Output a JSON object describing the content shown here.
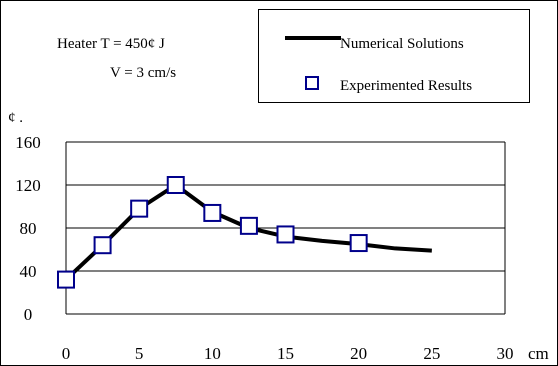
{
  "annotations": {
    "heater": "Heater T = 450¢ J",
    "velocity": "V = 3 cm/s",
    "y_unit": "¢ .",
    "x_unit": "cm"
  },
  "legend": {
    "line_label": "Numerical Solutions",
    "marker_label": "Experimented Results"
  },
  "colors": {
    "line": "#000000",
    "marker_edge": "#00008b",
    "marker_fill": "#ffffff",
    "grid": "#000000"
  },
  "chart_data": {
    "type": "line",
    "title": "",
    "xlabel": "cm",
    "ylabel": "¢ .",
    "xlim": [
      0,
      30
    ],
    "ylim": [
      0,
      160
    ],
    "x_ticks": [
      "0",
      "5",
      "10",
      "15",
      "20",
      "25",
      "30"
    ],
    "y_ticks": [
      "0",
      "40",
      "80",
      "120",
      "160"
    ],
    "grid": "horizontal",
    "legend_position": "top-right",
    "series": [
      {
        "name": "Numerical Solutions",
        "style": "line",
        "x": [
          0,
          2.5,
          5,
          7.5,
          10,
          12.5,
          15,
          17.5,
          20,
          22.5,
          25
        ],
        "y": [
          32,
          64,
          98,
          120,
          95,
          80,
          72,
          68,
          65,
          61,
          59
        ]
      },
      {
        "name": "Experimented Results",
        "style": "marker",
        "x": [
          0,
          2.5,
          5,
          7.5,
          10,
          12.5,
          15,
          20
        ],
        "y": [
          32,
          64,
          98,
          120,
          94,
          82,
          74,
          66
        ]
      }
    ]
  }
}
